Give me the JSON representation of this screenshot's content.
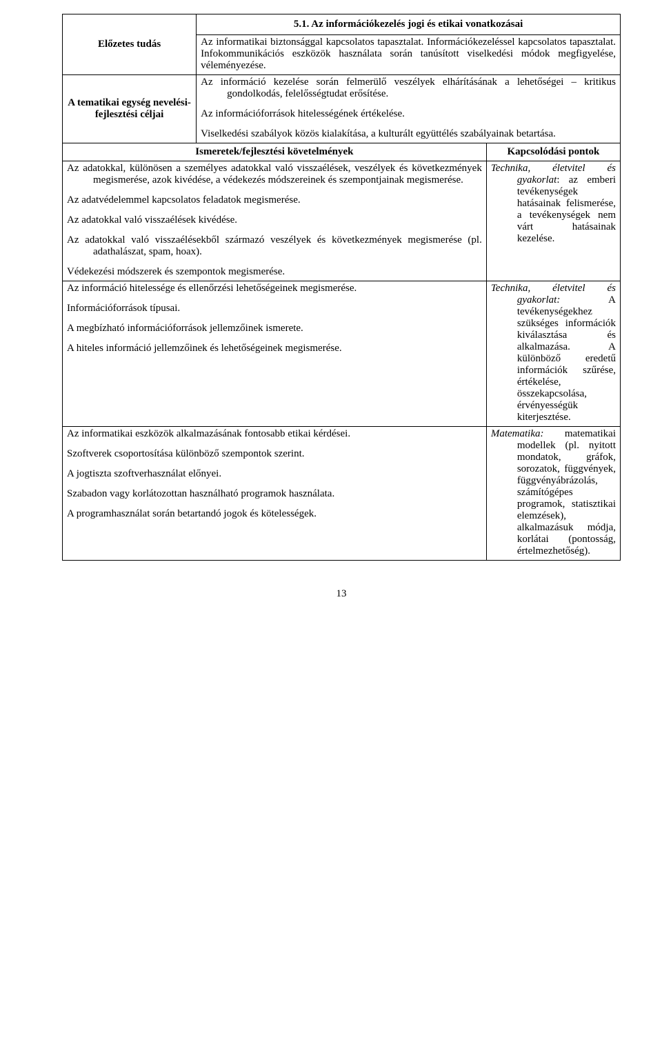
{
  "title": "5.1. Az információkezelés jogi és etikai vonatkozásai",
  "row1_label": "Előzetes tudás",
  "row1_body": "Az informatikai biztonsággal kapcsolatos tapasztalat. Információkezeléssel kapcsolatos tapasztalat. Infokommunikációs eszközök használata során tanúsított viselkedési módok megfigyelése, véleményezése.",
  "row2_label": "A tematikai egység nevelési-fejlesztési céljai",
  "row2_p1": "Az információ kezelése során felmerülő veszélyek elhárításának a lehetőségei – kritikus gondolkodás, felelősségtudat erősítése.",
  "row2_p2": "Az információforrások hitelességének értékelése.",
  "row2_p3": "Viselkedési szabályok közös kialakítása, a kulturált együttélés szabályainak betartása.",
  "ismeretek_header": "Ismeretek/fejlesztési követelmények",
  "kapcs_header": "Kapcsolódási pontok",
  "block1": {
    "p1": "Az adatokkal, különösen a személyes adatokkal való visszaélések, veszélyek és következmények megismerése, azok kivédése, a védekezés módszereinek és szempontjainak megismerése.",
    "p2": "Az adatvédelemmel kapcsolatos feladatok megismerése.",
    "p3": "Az adatokkal való visszaélések kivédése.",
    "p4": "Az adatokkal való visszaélésekből származó veszélyek és következmények megismerése (pl. adathalászat, spam, hoax).",
    "p5": "Védekezési módszerek és szempontok megismerése."
  },
  "kapcs1_italic": "Technika, életvitel és gyakorlat",
  "kapcs1_rest": ": az emberi tevékenységek hatásainak felismerése, a tevékenységek nem várt hatásainak kezelése.",
  "block2": {
    "p1": "Az információ hitelessége és ellenőrzési lehetőségeinek megismerése.",
    "p2": "Információforrások típusai.",
    "p3": "A megbízható információforrások jellemzőinek ismerete.",
    "p4": "A hiteles információ jellemzőinek és lehetőségeinek megismerése."
  },
  "kapcs2_italic": "Technika, életvitel és gyakorlat:",
  "kapcs2_rest": " A tevékenységekhez szükséges információk kiválasztása és alkalmazása. A különböző eredetű információk szűrése, értékelése, összekapcsolása, érvényességük kiterjesztése.",
  "block3": {
    "p1": "Az informatikai eszközök alkalmazásának fontosabb etikai kérdései.",
    "p2": "Szoftverek csoportosítása különböző szempontok szerint.",
    "p3": "A jogtiszta szoftverhasználat előnyei.",
    "p4": "Szabadon vagy korlátozottan használható programok használata.",
    "p5": "A programhasználat során betartandó jogok és kötelességek."
  },
  "kapcs3_italic": "Matematika:",
  "kapcs3_rest": " matematikai modellek (pl. nyitott mondatok, gráfok, sorozatok, függvények, függvényábrázolás, számítógépes programok, statisztikai elemzések), alkalmazásuk módja, korlátai (pontosság, értelmezhetőség).",
  "page_number": "13"
}
